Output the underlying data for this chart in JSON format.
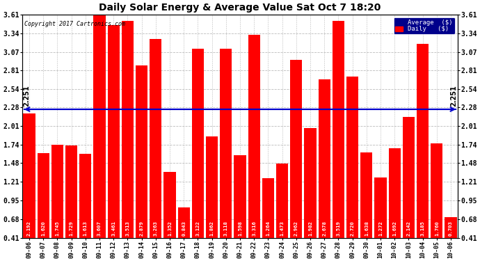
{
  "title": "Daily Solar Energy & Average Value Sat Oct 7 18:20",
  "copyright": "Copyright 2017 Cartronics.com",
  "average_value": 2.251,
  "bar_color": "#FF0000",
  "average_line_color": "#0000CD",
  "background_color": "#FFFFFF",
  "grid_color": "#BBBBBB",
  "categories": [
    "09-06",
    "09-07",
    "09-08",
    "09-09",
    "09-10",
    "09-11",
    "09-12",
    "09-13",
    "09-14",
    "09-15",
    "09-16",
    "09-17",
    "09-18",
    "09-19",
    "09-20",
    "09-21",
    "09-22",
    "09-23",
    "09-24",
    "09-25",
    "09-26",
    "09-27",
    "09-28",
    "09-29",
    "09-30",
    "10-01",
    "10-02",
    "10-03",
    "10-04",
    "10-05",
    "10-06"
  ],
  "values": [
    2.192,
    1.62,
    1.745,
    1.729,
    1.613,
    3.607,
    3.461,
    3.513,
    2.879,
    3.263,
    1.352,
    0.843,
    3.122,
    1.862,
    3.118,
    1.598,
    3.316,
    1.264,
    1.473,
    2.962,
    1.982,
    2.678,
    3.519,
    2.72,
    1.638,
    1.272,
    1.692,
    2.142,
    3.185,
    1.76,
    0.703
  ],
  "ylim_min": 0.41,
  "ylim_max": 3.61,
  "yticks": [
    0.41,
    0.68,
    0.95,
    1.21,
    1.48,
    1.74,
    2.01,
    2.28,
    2.54,
    2.81,
    3.07,
    3.34,
    3.61
  ],
  "legend_bg_color": "#00008B",
  "legend_text_color": "#FFFFFF",
  "average_label": "Average  ($)",
  "daily_label": "Daily   ($)",
  "figwidth": 6.9,
  "figheight": 3.75,
  "dpi": 100
}
